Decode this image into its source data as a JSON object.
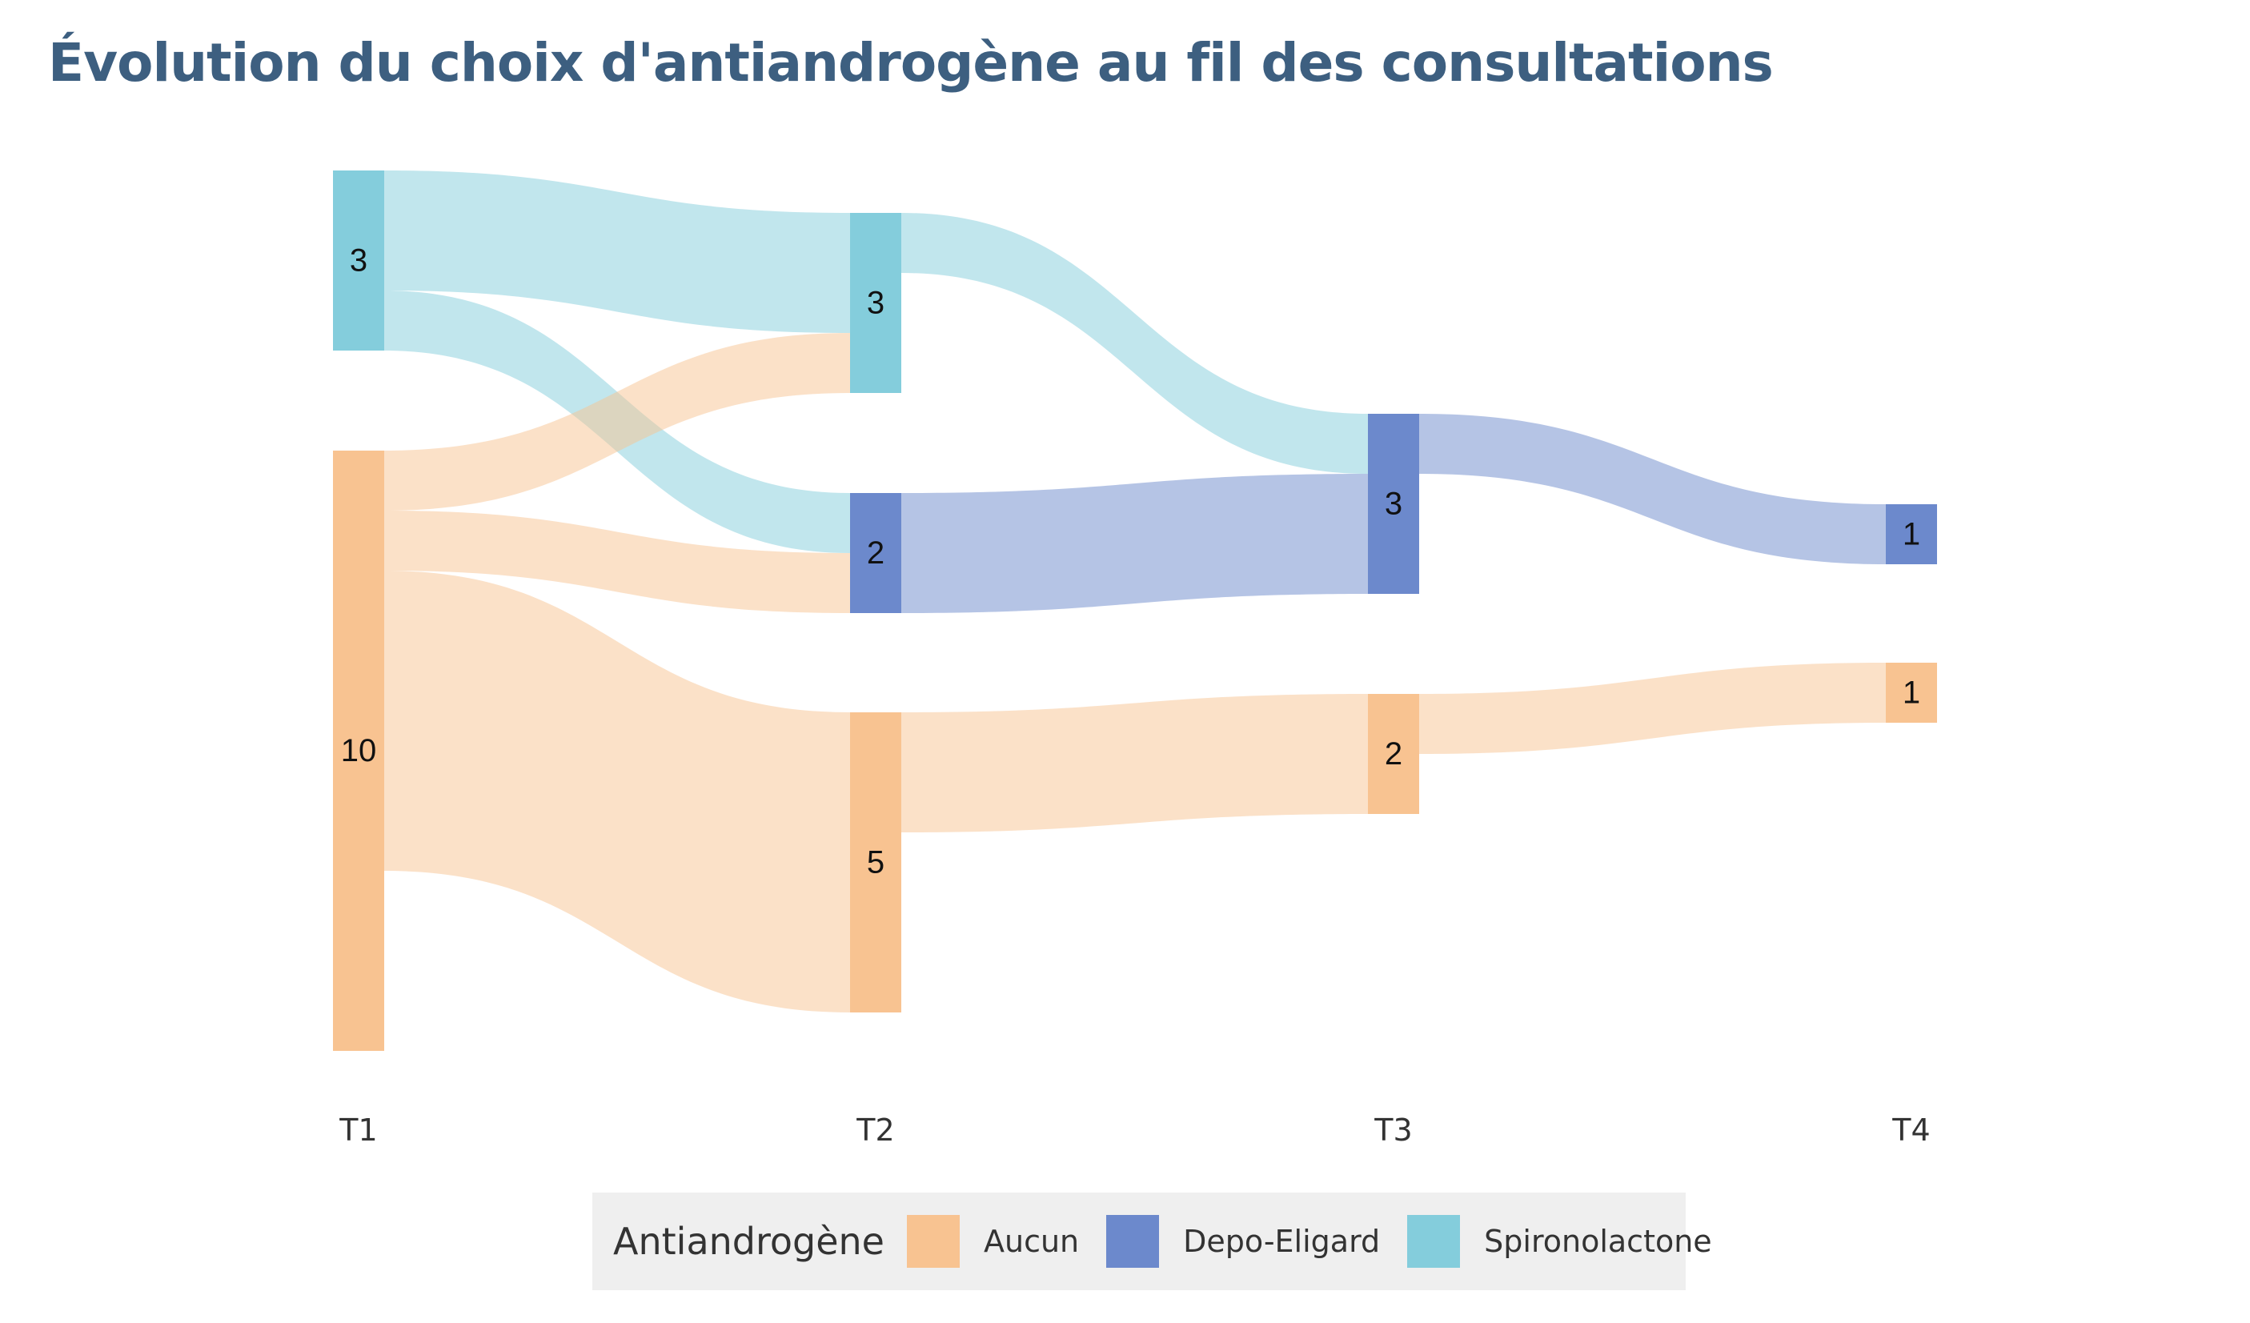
{
  "title": "Évolution du choix d'antiandrogène au fil des consultations",
  "legend": {
    "title": "Antiandrogène",
    "items": [
      {
        "label": "Aucun",
        "color": "#f8c391"
      },
      {
        "label": "Depo-Eligard",
        "color": "#6c89cc"
      },
      {
        "label": "Spironolactone",
        "color": "#84cddc"
      }
    ]
  },
  "chart_data": {
    "type": "sankey",
    "stages": [
      "T1",
      "T2",
      "T3",
      "T4"
    ],
    "nodes": [
      {
        "stage": "T1",
        "category": "Spironolactone",
        "value": 3
      },
      {
        "stage": "T1",
        "category": "Aucun",
        "value": 10
      },
      {
        "stage": "T2",
        "category": "Spironolactone",
        "value": 3
      },
      {
        "stage": "T2",
        "category": "Depo-Eligard",
        "value": 2
      },
      {
        "stage": "T2",
        "category": "Aucun",
        "value": 5
      },
      {
        "stage": "T3",
        "category": "Depo-Eligard",
        "value": 3
      },
      {
        "stage": "T3",
        "category": "Aucun",
        "value": 2
      },
      {
        "stage": "T4",
        "category": "Depo-Eligard",
        "value": 1
      },
      {
        "stage": "T4",
        "category": "Aucun",
        "value": 1
      }
    ],
    "flows": [
      {
        "from_stage": "T1",
        "from": "Spironolactone",
        "to_stage": "T2",
        "to": "Spironolactone",
        "value": 2
      },
      {
        "from_stage": "T1",
        "from": "Spironolactone",
        "to_stage": "T2",
        "to": "Depo-Eligard",
        "value": 1
      },
      {
        "from_stage": "T1",
        "from": "Aucun",
        "to_stage": "T2",
        "to": "Spironolactone",
        "value": 1
      },
      {
        "from_stage": "T1",
        "from": "Aucun",
        "to_stage": "T2",
        "to": "Depo-Eligard",
        "value": 1
      },
      {
        "from_stage": "T1",
        "from": "Aucun",
        "to_stage": "T2",
        "to": "Aucun",
        "value": 5
      },
      {
        "from_stage": "T2",
        "from": "Spironolactone",
        "to_stage": "T3",
        "to": "Depo-Eligard",
        "value": 1
      },
      {
        "from_stage": "T2",
        "from": "Depo-Eligard",
        "to_stage": "T3",
        "to": "Depo-Eligard",
        "value": 2
      },
      {
        "from_stage": "T2",
        "from": "Aucun",
        "to_stage": "T3",
        "to": "Aucun",
        "value": 2
      },
      {
        "from_stage": "T3",
        "from": "Depo-Eligard",
        "to_stage": "T4",
        "to": "Depo-Eligard",
        "value": 1
      },
      {
        "from_stage": "T3",
        "from": "Aucun",
        "to_stage": "T4",
        "to": "Aucun",
        "value": 1
      }
    ]
  }
}
